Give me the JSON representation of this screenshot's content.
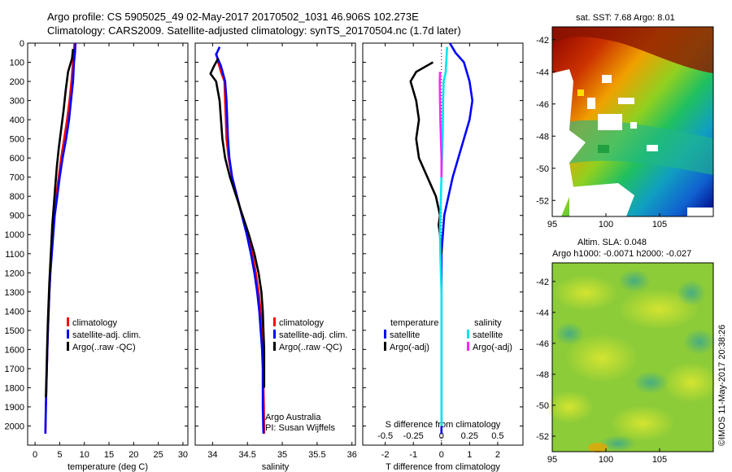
{
  "header": {
    "line1": "Argo profile: CS 5905025_49 02-May-2017 20170502_1031 46.906S 102.273E",
    "line2": "Climatology: CARS2009. Satellite-adjusted climatology: synTS_20170504.nc (1.7d later)"
  },
  "colors": {
    "climatology": "#ff0000",
    "satellite": "#0000ff",
    "argo": "#000000",
    "sal_satellite": "#00e5ee",
    "sal_argo": "#ff22ff"
  },
  "chart_data": [
    {
      "id": "temperature",
      "type": "line",
      "xlabel": "temperature (deg C)",
      "ylabel": "",
      "xlim": [
        -1.5,
        31
      ],
      "ylim": [
        2100,
        0
      ],
      "xticks": [
        0,
        5,
        10,
        15,
        20,
        25,
        30
      ],
      "xtick_labels": [
        "0",
        "5",
        "10",
        "15",
        "20",
        "25",
        "30"
      ],
      "yticks": [
        0,
        100,
        200,
        300,
        400,
        500,
        600,
        700,
        800,
        900,
        1000,
        1100,
        1200,
        1300,
        1400,
        1500,
        1600,
        1700,
        1800,
        1900,
        2000
      ],
      "ytick_labels": [
        "0",
        "100",
        "200",
        "300",
        "400",
        "500",
        "600",
        "700",
        "800",
        "900",
        "1000",
        "1100",
        "1200",
        "1300",
        "1400",
        "1500",
        "1600",
        "1700",
        "1800",
        "1900",
        "2000"
      ],
      "legend": [
        "climatology",
        "satellite-adj. clim.",
        "Argo(..raw -QC)"
      ],
      "series": [
        {
          "name": "climatology",
          "color": "red",
          "x": [
            8.0,
            7.9,
            7.7,
            7.4,
            7.0,
            6.5,
            5.9,
            5.3,
            4.8,
            4.3,
            3.9,
            3.6,
            3.3,
            3.1,
            2.9,
            2.75,
            2.6,
            2.5,
            2.4,
            2.3,
            2.2,
            2.1
          ],
          "y": [
            0,
            50,
            100,
            200,
            300,
            400,
            500,
            600,
            700,
            800,
            900,
            1000,
            1100,
            1200,
            1300,
            1400,
            1500,
            1600,
            1700,
            1800,
            1900,
            2040
          ]
        },
        {
          "name": "satellite-adj. clim.",
          "color": "blue",
          "x": [
            8.2,
            8.1,
            7.9,
            7.7,
            7.3,
            6.9,
            6.3,
            5.6,
            5.0,
            4.5,
            4.0,
            3.7,
            3.4,
            3.1,
            2.9,
            2.75,
            2.6,
            2.5,
            2.4,
            2.3,
            2.2,
            2.1
          ],
          "y": [
            0,
            50,
            100,
            200,
            300,
            400,
            500,
            600,
            700,
            800,
            900,
            1000,
            1100,
            1200,
            1300,
            1400,
            1500,
            1600,
            1700,
            1800,
            1900,
            2040
          ]
        },
        {
          "name": "Argo(..raw -QC)",
          "color": "black",
          "x": [
            7.7,
            7.5,
            6.7,
            6.2,
            5.8,
            5.3,
            4.8,
            4.4,
            4.1,
            3.8,
            3.5,
            3.3,
            3.1,
            2.9,
            2.75,
            2.6,
            2.5,
            2.4,
            2.3,
            2.2
          ],
          "y": [
            30,
            80,
            150,
            250,
            350,
            450,
            550,
            650,
            750,
            850,
            950,
            1050,
            1150,
            1250,
            1350,
            1450,
            1550,
            1650,
            1750,
            1850
          ]
        }
      ]
    },
    {
      "id": "salinity",
      "type": "line",
      "xlabel": "salinity",
      "xlim": [
        33.75,
        36.05
      ],
      "ylim": [
        2100,
        0
      ],
      "xticks": [
        34,
        34.5,
        35,
        35.5,
        36
      ],
      "xtick_labels": [
        "34",
        "34.5",
        "35",
        "35.5",
        "36"
      ],
      "legend": [
        "climatology",
        "satellite-adj. clim.",
        "Argo(..raw -QC)"
      ],
      "annotation": [
        "Argo Australia",
        "PI: Susan Wijffels"
      ],
      "series": [
        {
          "name": "climatology",
          "color": "red",
          "x": [
            34.05,
            34.08,
            34.12,
            34.17,
            34.18,
            34.19,
            34.2,
            34.23,
            34.28,
            34.35,
            34.42,
            34.5,
            34.57,
            34.62,
            34.66,
            34.69,
            34.71,
            34.72,
            34.725,
            34.73,
            34.735,
            34.74
          ],
          "y": [
            50,
            100,
            150,
            200,
            300,
            400,
            500,
            600,
            700,
            800,
            900,
            1000,
            1100,
            1200,
            1300,
            1400,
            1500,
            1600,
            1700,
            1800,
            1900,
            2040
          ]
        },
        {
          "name": "satellite-adj. clim.",
          "color": "blue",
          "x": [
            34.1,
            34.05,
            34.12,
            34.18,
            34.2,
            34.21,
            34.22,
            34.24,
            34.28,
            34.35,
            34.42,
            34.49,
            34.55,
            34.6,
            34.64,
            34.67,
            34.69,
            34.71,
            34.72,
            34.72,
            34.72,
            34.73
          ],
          "y": [
            20,
            60,
            120,
            200,
            300,
            400,
            500,
            600,
            700,
            800,
            900,
            1000,
            1100,
            1200,
            1300,
            1400,
            1500,
            1600,
            1700,
            1800,
            1900,
            2040
          ]
        },
        {
          "name": "Argo(..raw -QC)",
          "color": "black",
          "x": [
            34.08,
            34.02,
            33.97,
            34.05,
            34.1,
            34.12,
            34.14,
            34.18,
            34.25,
            34.34,
            34.43,
            34.52,
            34.6,
            34.66,
            34.7,
            34.72,
            34.73,
            34.74,
            34.74,
            34.74
          ],
          "y": [
            80,
            120,
            160,
            200,
            300,
            400,
            500,
            600,
            700,
            800,
            900,
            1000,
            1100,
            1200,
            1300,
            1400,
            1500,
            1600,
            1700,
            1800
          ]
        }
      ]
    },
    {
      "id": "differences",
      "type": "line",
      "xlabel": "T difference from climatology",
      "xlabel_top": "S difference from climatology",
      "xlim": [
        -2.8,
        2.9
      ],
      "ylim": [
        2100,
        0
      ],
      "xticks": [
        -2,
        -1,
        0,
        1,
        2
      ],
      "xtick_labels": [
        "-2",
        "-1",
        "0",
        "1",
        "2"
      ],
      "xticks_top": [
        -0.5,
        -0.25,
        0,
        0.25,
        0.5
      ],
      "xtick_labels_top": [
        "-0.5",
        "-0.25",
        "0",
        "0.25",
        "0.5"
      ],
      "legend_headers": [
        "temperature",
        "salinity"
      ],
      "legend": [
        "satellite",
        "Argo(-adj)",
        "satellite",
        "Argo(-adj)"
      ],
      "series": [
        {
          "name": "satellite",
          "group": "temperature",
          "color": "blue",
          "x": [
            0.3,
            0.5,
            0.8,
            1.0,
            1.1,
            1.0,
            0.8,
            0.6,
            0.4,
            0.25,
            0.1,
            0.05,
            0.0,
            0.0,
            0.0,
            0.0,
            0.0,
            0.0,
            0.0
          ],
          "y": [
            0,
            50,
            100,
            200,
            300,
            400,
            500,
            600,
            700,
            800,
            900,
            1000,
            1100,
            1200,
            1300,
            1400,
            1500,
            1600,
            2040
          ]
        },
        {
          "name": "Argo(-adj)",
          "group": "temperature",
          "color": "black",
          "x": [
            -0.3,
            -0.9,
            -1.1,
            -0.9,
            -0.8,
            -0.9,
            -0.8,
            -0.5,
            -0.2,
            -0.05,
            -0.1,
            -0.05,
            0.0
          ],
          "y": [
            100,
            150,
            200,
            300,
            400,
            500,
            600,
            700,
            800,
            900,
            950,
            1000,
            1100
          ]
        },
        {
          "name": "satellite",
          "group": "salinity",
          "color": "cyan",
          "x": [
            0.2,
            0.15,
            0.08,
            0.06,
            0.05,
            0.04,
            0.02,
            0.0,
            -0.02,
            -0.04,
            -0.05,
            -0.04,
            -0.02,
            0.0,
            0.0,
            0.0,
            0.0
          ],
          "y": [
            20,
            150,
            200,
            300,
            400,
            500,
            600,
            700,
            800,
            900,
            1000,
            1100,
            1200,
            1300,
            1500,
            1700,
            2000
          ]
        },
        {
          "name": "Argo(-adj)",
          "group": "salinity",
          "color": "magenta",
          "x": [
            -0.05,
            -0.06,
            -0.05,
            -0.04,
            -0.02,
            0.0,
            0.0
          ],
          "y": [
            150,
            200,
            300,
            400,
            500,
            600,
            700
          ]
        }
      ]
    },
    {
      "id": "sst_map",
      "type": "heatmap",
      "title": "sat. SST: 7.68  Argo: 8.01",
      "xlim": [
        95,
        110
      ],
      "ylim": [
        -53,
        -41.2
      ],
      "xticks": [
        95,
        100,
        105
      ],
      "xtick_labels": [
        "95",
        "100",
        "105"
      ],
      "yticks": [
        -42,
        -44,
        -46,
        -48,
        -50,
        -52
      ],
      "ytick_labels": [
        "-42",
        "-44",
        "-46",
        "-48",
        "-50",
        "-52"
      ],
      "colormap": "jet (warm north, cold south)"
    },
    {
      "id": "sla_map",
      "type": "heatmap",
      "title_lines": [
        "Altim. SLA: 0.048",
        "Argo h1000: -0.0071  h2000: -0.027"
      ],
      "xlim": [
        95,
        110
      ],
      "ylim": [
        -53,
        -40.8
      ],
      "xticks": [
        95,
        100,
        105
      ],
      "xtick_labels": [
        "95",
        "100",
        "105"
      ],
      "yticks": [
        -42,
        -44,
        -46,
        -48,
        -50,
        -52
      ],
      "ytick_labels": [
        "-42",
        "-44",
        "-46",
        "-48",
        "-50",
        "-52"
      ],
      "colormap": "green-yellow dominated"
    }
  ],
  "footer": {
    "timestamp": "©IMOS 11-May-2017 20:38:26"
  }
}
